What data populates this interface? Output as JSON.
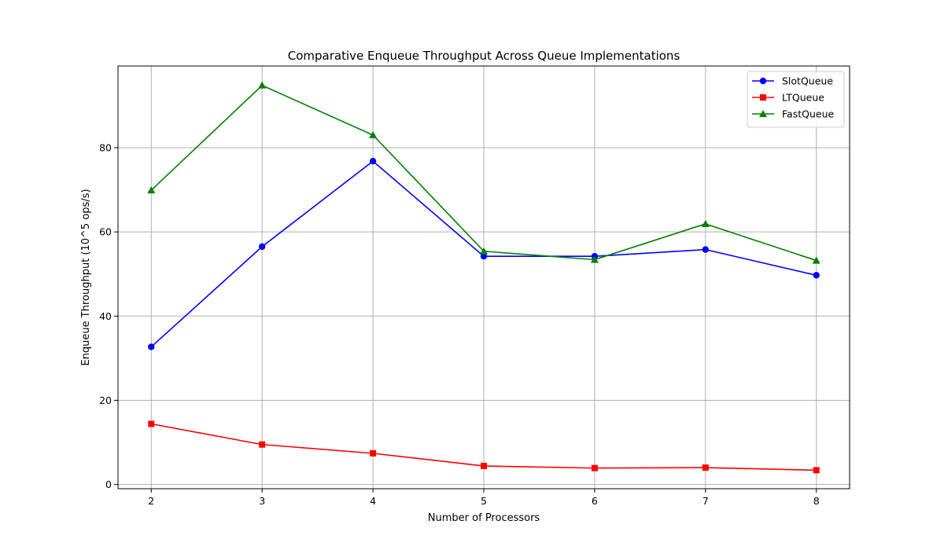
{
  "chart_data": {
    "type": "line",
    "title": "Comparative Enqueue Throughput Across Queue Implementations",
    "xlabel": "Number of Processors",
    "ylabel": "Enqueue Throughput (10^5 ops/s)",
    "x": [
      2,
      3,
      4,
      5,
      6,
      7,
      8
    ],
    "xlim": [
      1.7,
      8.3
    ],
    "ylim": [
      -1.0,
      99.4
    ],
    "xticks": [
      2,
      3,
      4,
      5,
      6,
      7,
      8
    ],
    "yticks": [
      0,
      20,
      40,
      60,
      80
    ],
    "grid": true,
    "legend_position": "top-right",
    "series": [
      {
        "name": "SlotQueue",
        "color": "#0000ff",
        "marker": "circle",
        "values": [
          32.7,
          56.5,
          76.8,
          54.2,
          54.2,
          55.8,
          49.7
        ]
      },
      {
        "name": "LTQueue",
        "color": "#ff0000",
        "marker": "square",
        "values": [
          14.4,
          9.5,
          7.4,
          4.4,
          3.9,
          4.0,
          3.4
        ]
      },
      {
        "name": "FastQueue",
        "color": "#008000",
        "marker": "triangle",
        "values": [
          69.9,
          94.8,
          83.0,
          55.4,
          53.4,
          61.9,
          53.2
        ]
      }
    ]
  }
}
